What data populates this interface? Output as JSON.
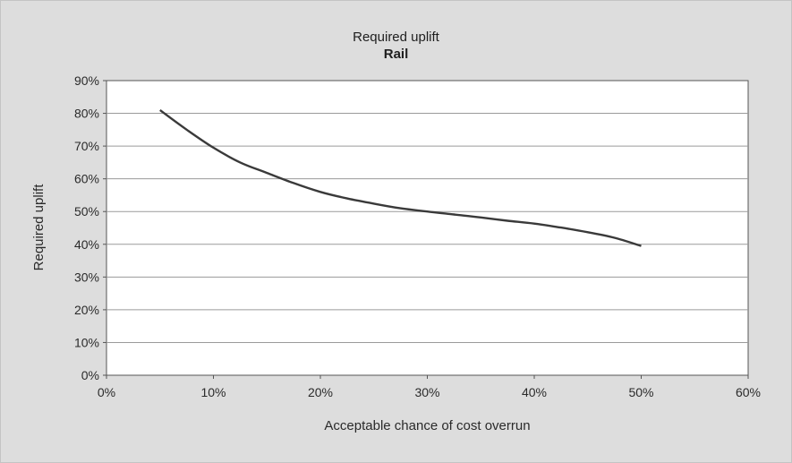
{
  "chart_data": {
    "type": "line",
    "title": "Required uplift",
    "subtitle": "Rail",
    "xlabel": "Acceptable chance of cost overrun",
    "ylabel": "Required uplift",
    "xlim": [
      0,
      60
    ],
    "ylim": [
      0,
      90
    ],
    "x_ticks": [
      0,
      10,
      20,
      30,
      40,
      50,
      60
    ],
    "y_ticks": [
      0,
      10,
      20,
      30,
      40,
      50,
      60,
      70,
      80,
      90
    ],
    "x_tick_labels": [
      "0%",
      "10%",
      "20%",
      "30%",
      "40%",
      "50%",
      "60%"
    ],
    "y_tick_labels": [
      "0%",
      "10%",
      "20%",
      "30%",
      "40%",
      "50%",
      "60%",
      "70%",
      "80%",
      "90%"
    ],
    "grid": "horizontal",
    "legend": "none",
    "series": [
      {
        "x": [
          5,
          7.5,
          10,
          12.5,
          15,
          17.5,
          20,
          22.5,
          25,
          27.5,
          30,
          32.5,
          35,
          37.5,
          40,
          42.5,
          45,
          47.5,
          50
        ],
        "y": [
          81,
          75,
          69.5,
          65,
          61.8,
          58.7,
          56,
          54,
          52.4,
          51,
          50,
          49.1,
          48.2,
          47.2,
          46.3,
          45.1,
          43.7,
          42,
          39.5
        ],
        "color": "#3a3a3a"
      }
    ]
  }
}
